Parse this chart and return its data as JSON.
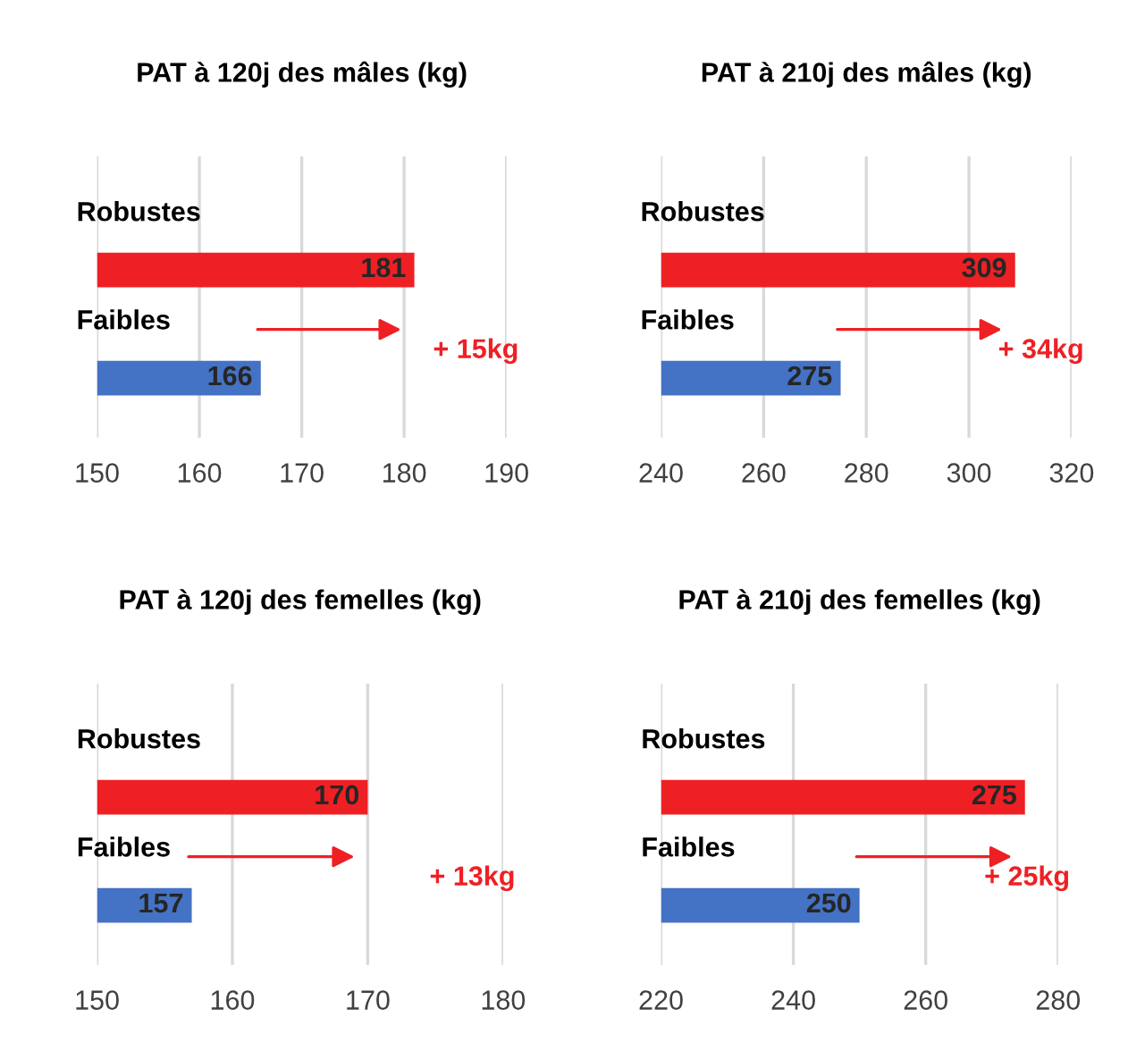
{
  "chart_data": [
    {
      "type": "bar",
      "orientation": "horizontal",
      "title": "PAT à 120j des mâles (kg)",
      "categories": [
        "Robustes",
        "Faibles"
      ],
      "values": [
        181,
        166
      ],
      "colors": [
        "#ee2024",
        "#4472c4"
      ],
      "xlim": [
        150,
        190
      ],
      "xticks": [
        150,
        160,
        170,
        180,
        190
      ],
      "grid": "x",
      "data_labels": true,
      "annotations": [
        "+ 15kg"
      ]
    },
    {
      "type": "bar",
      "orientation": "horizontal",
      "title": "PAT à 210j des mâles (kg)",
      "categories": [
        "Robustes",
        "Faibles"
      ],
      "values": [
        309,
        275
      ],
      "colors": [
        "#ee2024",
        "#4472c4"
      ],
      "xlim": [
        240,
        320
      ],
      "xticks": [
        240,
        260,
        280,
        300,
        320
      ],
      "grid": "x",
      "data_labels": true,
      "annotations": [
        "+ 34kg"
      ]
    },
    {
      "type": "bar",
      "orientation": "horizontal",
      "title": "PAT à 120j des femelles (kg)",
      "categories": [
        "Robustes",
        "Faibles"
      ],
      "values": [
        170,
        157
      ],
      "colors": [
        "#ee2024",
        "#4472c4"
      ],
      "xlim": [
        150,
        180
      ],
      "xticks": [
        150,
        160,
        170,
        180
      ],
      "grid": "x",
      "data_labels": true,
      "annotations": [
        "+ 13kg"
      ]
    },
    {
      "type": "bar",
      "orientation": "horizontal",
      "title": "PAT à 210j des femelles (kg)",
      "categories": [
        "Robustes",
        "Faibles"
      ],
      "values": [
        275,
        250
      ],
      "colors": [
        "#ee2024",
        "#4472c4"
      ],
      "xlim": [
        220,
        280
      ],
      "xticks": [
        220,
        240,
        260,
        280
      ],
      "grid": "x",
      "data_labels": true,
      "annotations": [
        "+ 25kg"
      ]
    }
  ]
}
